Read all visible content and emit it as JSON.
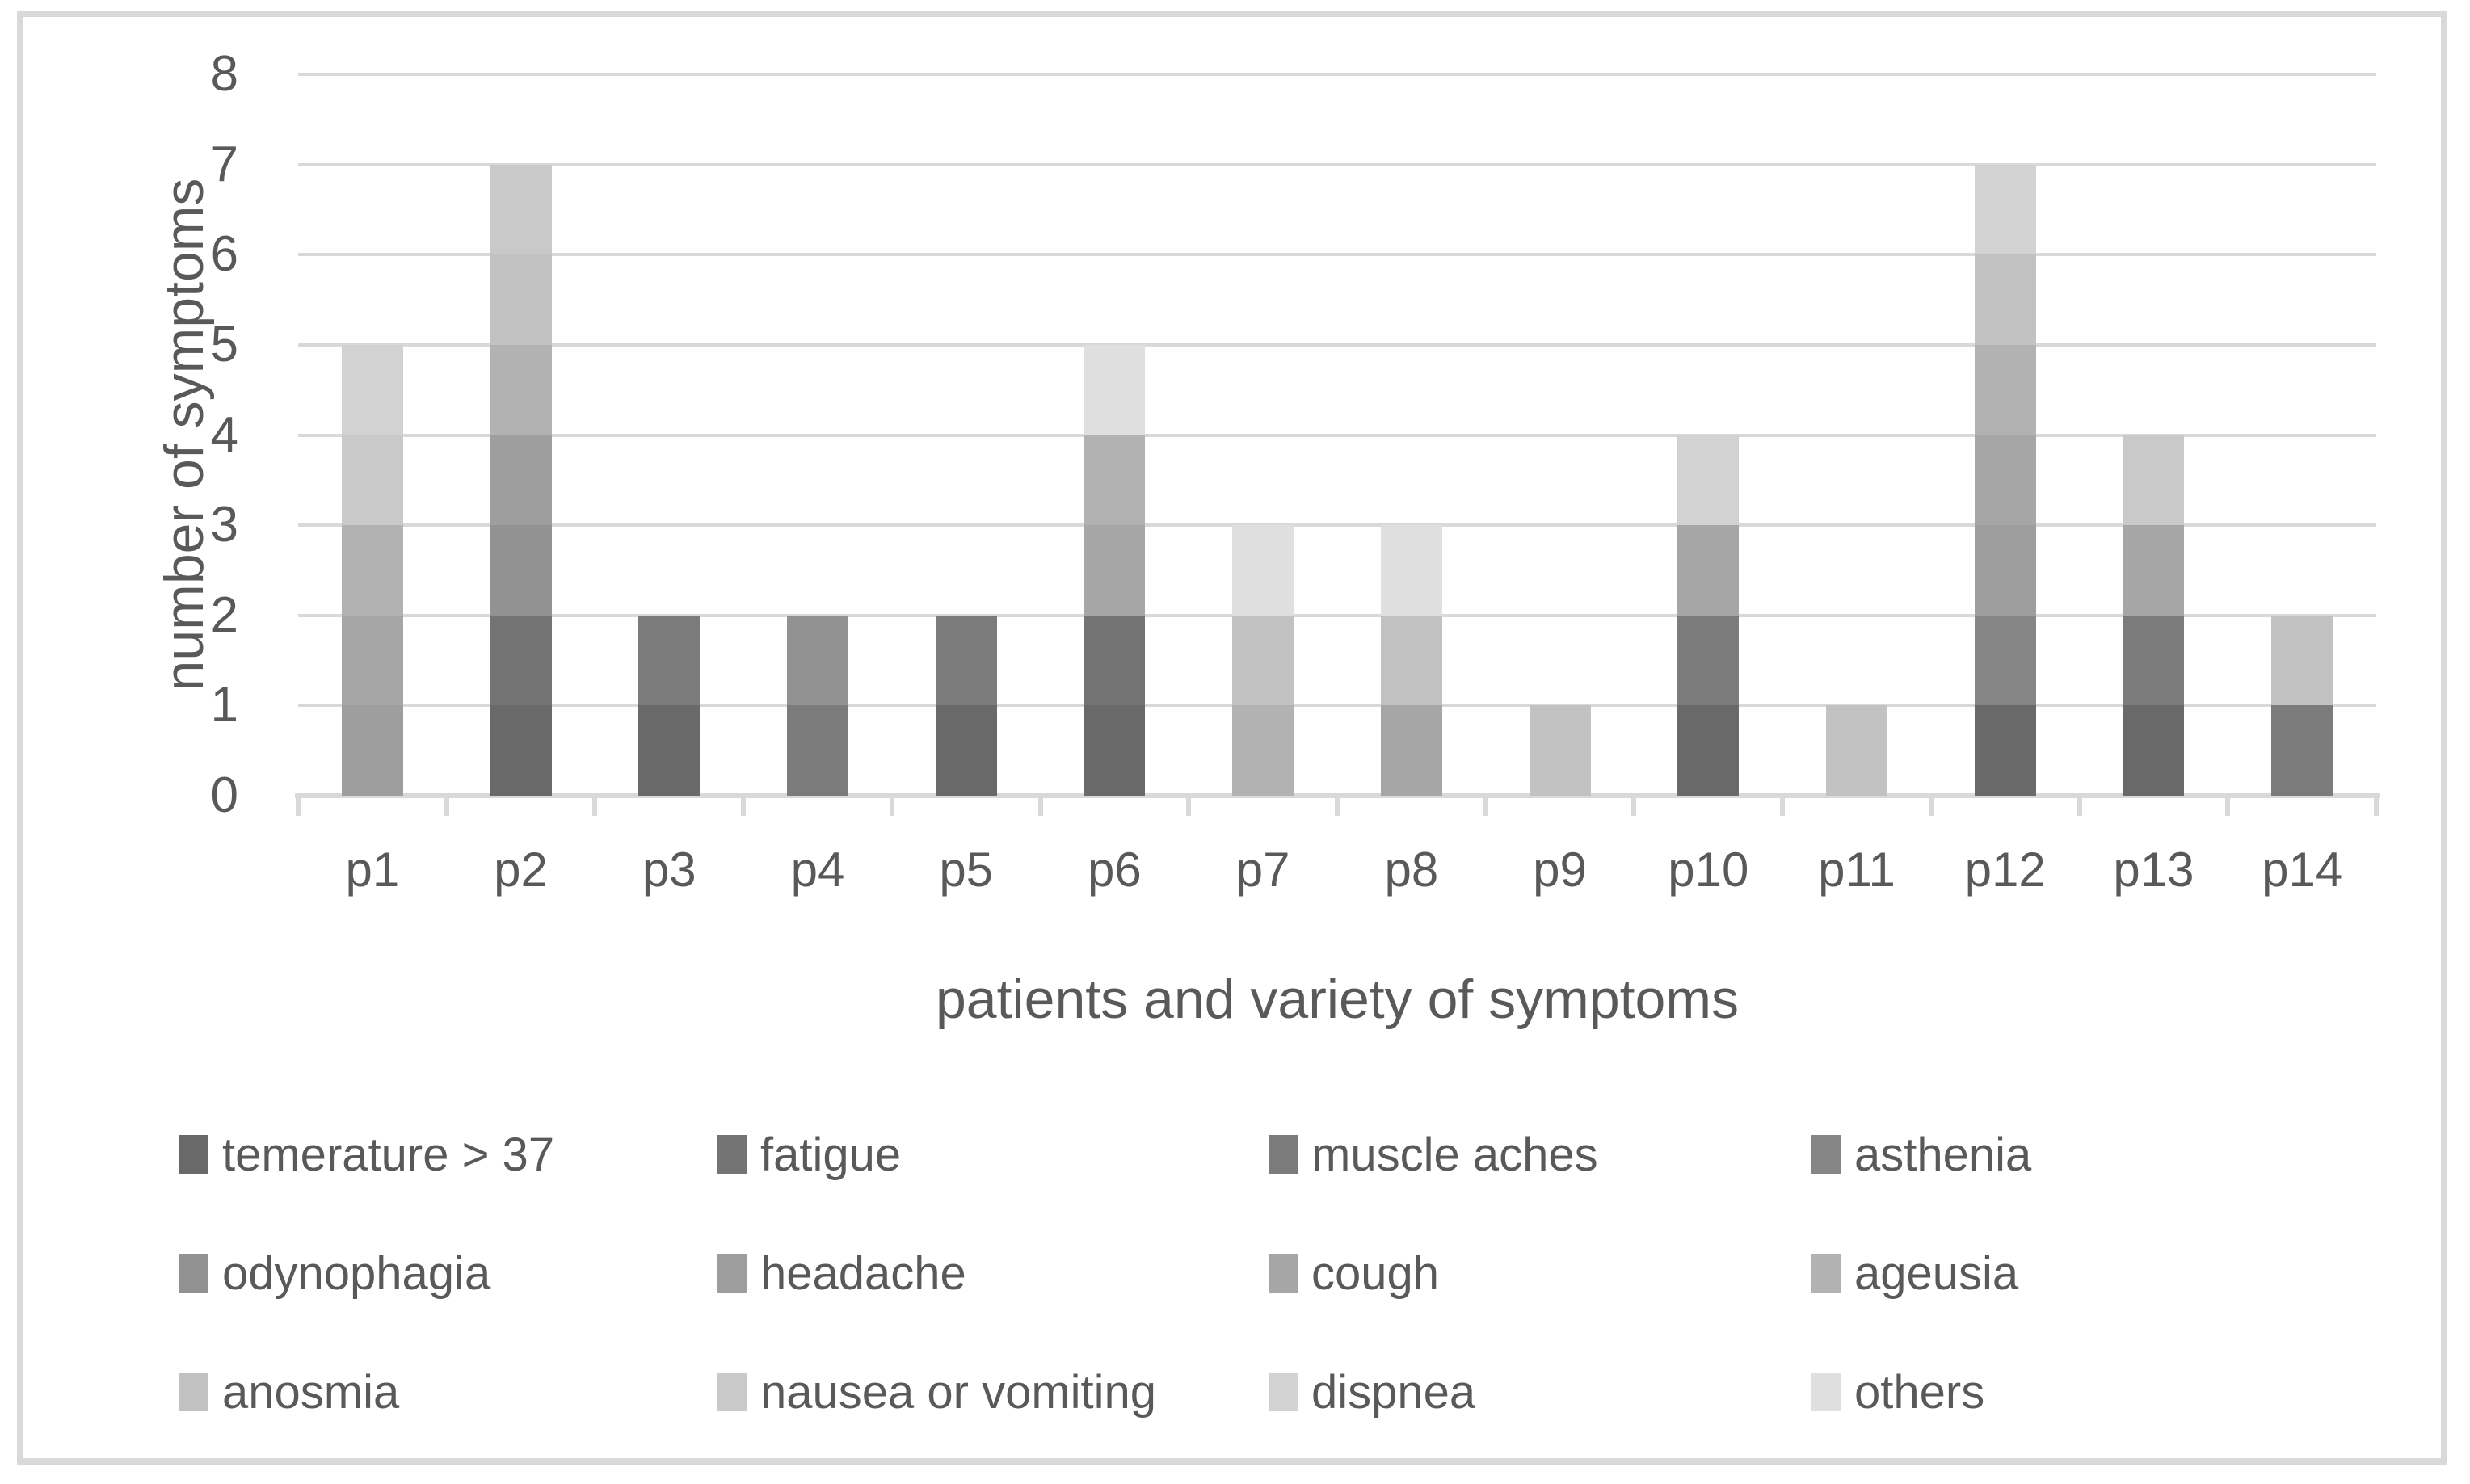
{
  "style": {
    "background": "#ffffff",
    "border_color": "#d9d9d9",
    "grid_color": "#d9d9d9",
    "text_color": "#595959"
  },
  "chart_data": {
    "type": "bar",
    "stacked": true,
    "title": "",
    "xlabel": "patients and variety of symptoms",
    "ylabel": "number of symptoms",
    "ylim": [
      0,
      8
    ],
    "yticks": [
      0,
      1,
      2,
      3,
      4,
      5,
      6,
      7,
      8
    ],
    "grid": "horizontal",
    "legend_position": "bottom",
    "categories": [
      "p1",
      "p2",
      "p3",
      "p4",
      "p5",
      "p6",
      "p7",
      "p8",
      "p9",
      "p10",
      "p11",
      "p12",
      "p13",
      "p14"
    ],
    "totals": [
      5,
      7,
      2,
      2,
      2,
      5,
      3,
      3,
      1,
      4,
      1,
      7,
      4,
      2
    ],
    "series": [
      {
        "name": "temerature > 37",
        "color": "#696969",
        "values": [
          0,
          1,
          1,
          0,
          1,
          1,
          0,
          0,
          0,
          1,
          0,
          1,
          1,
          0
        ]
      },
      {
        "name": "fatigue",
        "color": "#747474",
        "values": [
          0,
          1,
          0,
          0,
          0,
          1,
          0,
          0,
          0,
          0,
          0,
          0,
          0,
          0
        ]
      },
      {
        "name": "muscle aches",
        "color": "#7b7b7b",
        "values": [
          0,
          0,
          1,
          1,
          1,
          0,
          0,
          0,
          0,
          1,
          0,
          0,
          1,
          1
        ]
      },
      {
        "name": "asthenia",
        "color": "#868686",
        "values": [
          0,
          0,
          0,
          0,
          0,
          0,
          0,
          0,
          0,
          0,
          0,
          1,
          0,
          0
        ]
      },
      {
        "name": "odynophagia",
        "color": "#929292",
        "values": [
          0,
          1,
          0,
          1,
          0,
          0,
          0,
          0,
          0,
          0,
          0,
          0,
          0,
          0
        ]
      },
      {
        "name": "headache",
        "color": "#9e9e9e",
        "values": [
          1,
          1,
          0,
          0,
          0,
          0,
          0,
          0,
          0,
          0,
          0,
          1,
          0,
          0
        ]
      },
      {
        "name": "cough",
        "color": "#a6a6a6",
        "values": [
          1,
          0,
          0,
          0,
          0,
          1,
          0,
          1,
          0,
          1,
          0,
          1,
          1,
          0
        ]
      },
      {
        "name": "ageusia",
        "color": "#b2b2b2",
        "values": [
          1,
          1,
          0,
          0,
          0,
          1,
          1,
          0,
          0,
          0,
          0,
          1,
          0,
          0
        ]
      },
      {
        "name": "anosmia",
        "color": "#c2c2c2",
        "values": [
          0,
          1,
          0,
          0,
          0,
          0,
          1,
          1,
          1,
          0,
          1,
          1,
          0,
          1
        ]
      },
      {
        "name": "nausea or vomiting",
        "color": "#c9c9c9",
        "values": [
          1,
          1,
          0,
          0,
          0,
          0,
          0,
          0,
          0,
          0,
          0,
          0,
          1,
          0
        ]
      },
      {
        "name": "dispnea",
        "color": "#d2d2d2",
        "values": [
          1,
          0,
          0,
          0,
          0,
          0,
          0,
          0,
          0,
          1,
          0,
          1,
          0,
          0
        ]
      },
      {
        "name": "others",
        "color": "#dfdfdf",
        "values": [
          0,
          0,
          0,
          0,
          0,
          1,
          1,
          1,
          0,
          0,
          0,
          0,
          0,
          0
        ]
      }
    ]
  }
}
